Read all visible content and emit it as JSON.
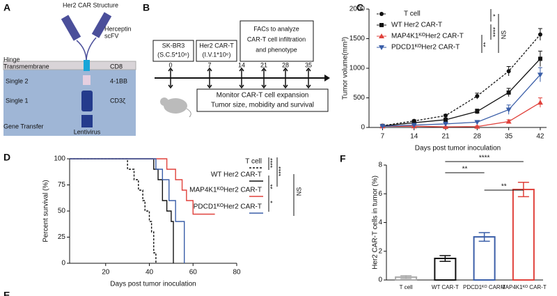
{
  "panels": {
    "A": {
      "letter": "A",
      "title": "Her2 CAR Structure",
      "scfv": [
        "Herceptin",
        "scFV"
      ],
      "left_labels": [
        "Hinge",
        "Transmembrane",
        "Single 2",
        "Single 1",
        "Gene Transfer"
      ],
      "right_labels": [
        "CD8",
        "4-1BB",
        "CD3ζ"
      ],
      "vector": "Lentivirus"
    },
    "B": {
      "letter": "B",
      "boxes": [
        [
          "SK-BR3",
          "(S.C.5*10⁶)"
        ],
        [
          "Her2 CAR-T",
          "(I.V.1*10⁶)"
        ],
        [
          "FACs to analyze",
          "CAR-T cell infiltration",
          "and phenotype"
        ]
      ],
      "timeline": [
        0,
        7,
        14,
        21,
        28,
        35
      ],
      "monitor": [
        "Monitor CAR-T  cell expansion",
        "Tumor size, mobidity and survival"
      ]
    },
    "E": {
      "letter": "E"
    }
  },
  "chart_data": [
    {
      "type": "line",
      "panel": "C",
      "x": [
        7,
        14,
        21,
        28,
        35,
        42
      ],
      "xlim": [
        4,
        43.4
      ],
      "xticks": [
        7,
        14,
        21,
        28,
        35,
        42
      ],
      "ylim": [
        0,
        2000
      ],
      "yticks": [
        0,
        500,
        1000,
        1500,
        2000
      ],
      "ylabel": "Tumor volume(mm³)",
      "xlabel": "Days post tumor inoculation",
      "series": [
        {
          "name": "T cell",
          "color": "#111111",
          "marker": "circle",
          "dashed": true,
          "values": [
            30,
            110,
            200,
            530,
            950,
            1570
          ],
          "errors": [
            5,
            20,
            20,
            50,
            80,
            100
          ]
        },
        {
          "name": "WT Her2 CAR-T",
          "color": "#111111",
          "marker": "square",
          "dashed": false,
          "values": [
            25,
            80,
            130,
            270,
            590,
            1160
          ],
          "errors": [
            5,
            15,
            15,
            40,
            70,
            130
          ]
        },
        {
          "name": "MAP4K1ᴷᴼHer2 CAR-T",
          "color": "#e0413b",
          "marker": "triangle",
          "dashed": false,
          "values": [
            20,
            20,
            10,
            15,
            100,
            420
          ],
          "errors": [
            5,
            5,
            5,
            10,
            30,
            80
          ]
        },
        {
          "name": "PDCD1ᴷᴼHer2 CAR-T",
          "color": "#3a5ea8",
          "marker": "triangle-down",
          "dashed": false,
          "values": [
            20,
            40,
            60,
            90,
            300,
            890
          ],
          "errors": [
            5,
            10,
            15,
            20,
            80,
            120
          ]
        }
      ],
      "annotations": [
        "*",
        "****",
        "**",
        "NS"
      ]
    },
    {
      "type": "step",
      "panel": "D",
      "xlim": [
        3.5,
        80
      ],
      "xticks": [
        20,
        40,
        60,
        80
      ],
      "ylim": [
        0,
        100
      ],
      "yticks": [
        0,
        25,
        50,
        75,
        100
      ],
      "ylabel": "Percent survival (%)",
      "xlabel": "Days post tumor inoculation",
      "series": [
        {
          "name": "T cell",
          "color": "#111111",
          "dashed": true,
          "times": [
            3.5,
            30,
            33,
            35,
            37,
            38,
            40,
            41,
            42,
            43
          ],
          "values": [
            100,
            90,
            80,
            70,
            60,
            50,
            40,
            30,
            10,
            0
          ]
        },
        {
          "name": "WT Her2 CAR-T",
          "color": "#111111",
          "dashed": false,
          "times": [
            3.5,
            42,
            44,
            46,
            48,
            50,
            51
          ],
          "values": [
            100,
            90,
            80,
            60,
            50,
            40,
            0
          ]
        },
        {
          "name": "MAP4K1ᴷᴼHer2 CAR-T",
          "color": "#e0413b",
          "dashed": false,
          "times": [
            3.5,
            48,
            52,
            55,
            57,
            60,
            70
          ],
          "values": [
            100,
            90,
            80,
            70,
            60,
            47,
            47
          ]
        },
        {
          "name": "PDCD1ᴷᴼHer2 CAR-T",
          "color": "#3a5ea8",
          "dashed": false,
          "times": [
            3.5,
            43,
            46,
            49,
            52,
            56
          ],
          "values": [
            100,
            90,
            80,
            60,
            40,
            0
          ]
        }
      ],
      "annotations": [
        "****",
        "****",
        "**",
        "*",
        "NS"
      ]
    },
    {
      "type": "bar",
      "panel": "F",
      "categories": [
        "T cell",
        "WT CAR-T",
        "PDCD1ᴷᴼ CAR-T",
        "MAP4K1ᴷᴼ CAR-T"
      ],
      "values": [
        0.2,
        1.5,
        3.0,
        6.3
      ],
      "errors": [
        0.1,
        0.2,
        0.3,
        0.5
      ],
      "colors": [
        "#aaaaaa",
        "#111111",
        "#3a5ea8",
        "#e0413b"
      ],
      "ylim": [
        0,
        8
      ],
      "yticks": [
        0,
        2,
        4,
        6,
        8
      ],
      "ylabel": "Her2 CAR-T cells in tumor (%)",
      "annotations": [
        "****",
        "**",
        "**"
      ]
    }
  ]
}
